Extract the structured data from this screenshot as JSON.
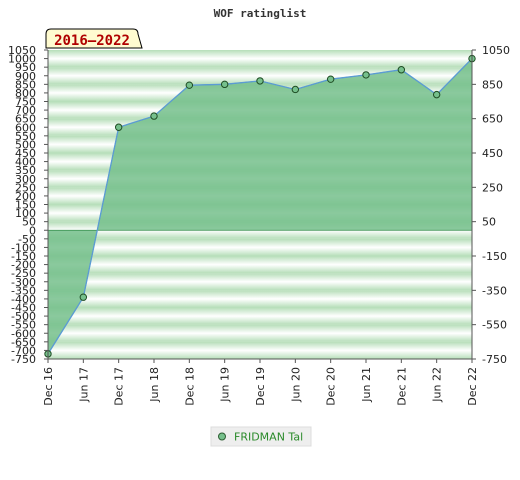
{
  "chart_data": {
    "type": "area",
    "title": "WOF ratinglist",
    "badge": "2016–2022",
    "x": [
      "Dec 16",
      "Jun 17",
      "Dec 17",
      "Jun 18",
      "Dec 18",
      "Jun 19",
      "Dec 19",
      "Jun 20",
      "Dec 20",
      "Jun 21",
      "Dec 21",
      "Jun 22",
      "Dec 22"
    ],
    "series": [
      {
        "name": "FRIDMAN Tal",
        "values": [
          -720,
          -390,
          600,
          665,
          845,
          850,
          870,
          820,
          880,
          905,
          935,
          790,
          1000
        ]
      }
    ],
    "ylim": [
      -750,
      1050
    ],
    "yticks_left": [
      1050,
      1000,
      950,
      900,
      850,
      800,
      750,
      700,
      650,
      600,
      550,
      500,
      450,
      400,
      350,
      300,
      250,
      200,
      150,
      100,
      50,
      0,
      -50,
      -100,
      -150,
      -200,
      -250,
      -300,
      -350,
      -400,
      -450,
      -500,
      -550,
      -600,
      -650,
      -700,
      -750
    ],
    "yticks_right": [
      1050,
      850,
      650,
      450,
      250,
      50,
      -150,
      -350,
      -550,
      -750
    ],
    "legend_position": "bottom-center",
    "colors": {
      "line": "#5b9bd5",
      "fill": "#76c08c",
      "marker": "#3a8a4a",
      "band_dark": "#b6deb9",
      "band_light": "#ffffff"
    }
  }
}
